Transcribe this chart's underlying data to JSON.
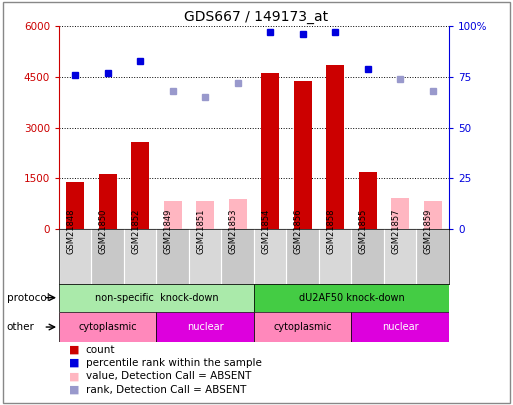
{
  "title": "GDS667 / 149173_at",
  "samples": [
    "GSM21848",
    "GSM21850",
    "GSM21852",
    "GSM21849",
    "GSM21851",
    "GSM21853",
    "GSM21854",
    "GSM21856",
    "GSM21858",
    "GSM21855",
    "GSM21857",
    "GSM21859"
  ],
  "count_values": [
    1380,
    1620,
    2580,
    null,
    null,
    null,
    4620,
    4380,
    4860,
    1680,
    null,
    null
  ],
  "count_absent_values": [
    null,
    null,
    null,
    820,
    820,
    870,
    null,
    null,
    null,
    null,
    900,
    820
  ],
  "rank_values": [
    76,
    77,
    83,
    null,
    null,
    null,
    97,
    96,
    97,
    79,
    null,
    null
  ],
  "rank_absent_values": [
    null,
    null,
    null,
    68,
    65,
    72,
    null,
    null,
    null,
    null,
    74,
    68
  ],
  "ylim_left": [
    0,
    6000
  ],
  "ylim_right": [
    0,
    100
  ],
  "yticks_left": [
    0,
    1500,
    3000,
    4500,
    6000
  ],
  "yticks_right": [
    0,
    25,
    50,
    75,
    100
  ],
  "ytick_labels_left": [
    "0",
    "1500",
    "3000",
    "4500",
    "6000"
  ],
  "ytick_labels_right": [
    "0",
    "25",
    "50",
    "75",
    "100%"
  ],
  "protocol_groups": [
    {
      "label": "non-specific  knock-down",
      "start": 0,
      "end": 6,
      "color": "#AAEAAA"
    },
    {
      "label": "dU2AF50 knock-down",
      "start": 6,
      "end": 12,
      "color": "#44CC44"
    }
  ],
  "other_groups": [
    {
      "label": "cytoplasmic",
      "start": 0,
      "end": 3,
      "color": "#FF88BB"
    },
    {
      "label": "nuclear",
      "start": 3,
      "end": 6,
      "color": "#DD00DD"
    },
    {
      "label": "cytoplasmic",
      "start": 6,
      "end": 9,
      "color": "#FF88BB"
    },
    {
      "label": "nuclear",
      "start": 9,
      "end": 12,
      "color": "#DD00DD"
    }
  ],
  "bar_color_present": "#CC0000",
  "bar_color_absent": "#FFB6C1",
  "dot_color_present": "#0000DD",
  "dot_color_absent": "#9999CC",
  "bar_width": 0.55,
  "grid_color": "black",
  "grid_style": "dotted",
  "legend_items": [
    {
      "label": "count",
      "color": "#CC0000"
    },
    {
      "label": "percentile rank within the sample",
      "color": "#0000DD"
    },
    {
      "label": "value, Detection Call = ABSENT",
      "color": "#FFB6C1"
    },
    {
      "label": "rank, Detection Call = ABSENT",
      "color": "#9999CC"
    }
  ],
  "left_axis_color": "#CC0000",
  "right_axis_color": "#0000DD",
  "bg_color": "#FFFFFF",
  "border_color": "#888888"
}
